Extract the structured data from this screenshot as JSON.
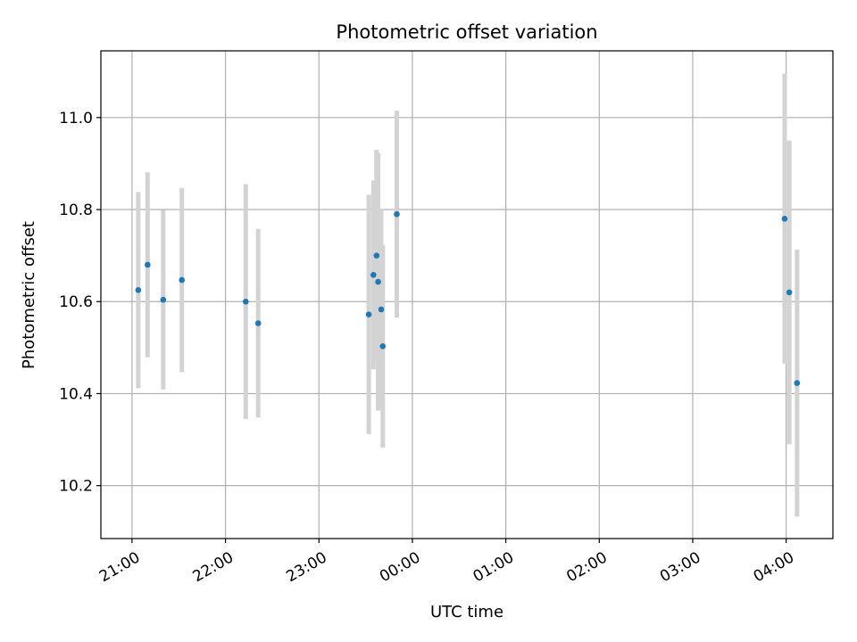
{
  "chart_data": {
    "type": "scatter",
    "title": "Photometric offset variation",
    "xlabel": "UTC time",
    "ylabel": "Photometric offset",
    "x_axis": "time (UTC), hours from 21:00 on the first night",
    "xlim": [
      "20:40",
      "04:30"
    ],
    "ylim": [
      10.085,
      11.145
    ],
    "xticks": [
      {
        "value": "21:00",
        "label": "21:00"
      },
      {
        "value": "22:00",
        "label": "22:00"
      },
      {
        "value": "23:00",
        "label": "23:00"
      },
      {
        "value": "00:00",
        "label": "00:00"
      },
      {
        "value": "01:00",
        "label": "01:00"
      },
      {
        "value": "02:00",
        "label": "02:00"
      },
      {
        "value": "03:00",
        "label": "03:00"
      },
      {
        "value": "04:00",
        "label": "04:00"
      }
    ],
    "yticks": [
      {
        "value": 10.2,
        "label": "10.2"
      },
      {
        "value": 10.4,
        "label": "10.4"
      },
      {
        "value": 10.6,
        "label": "10.6"
      },
      {
        "value": 10.8,
        "label": "10.8"
      },
      {
        "value": 11.0,
        "label": "11.0"
      }
    ],
    "grid": true,
    "marker_color": "#1f77b4",
    "errorbar_color": "#d3d3d3",
    "points": [
      {
        "x": "21:04",
        "y": 10.625,
        "err": 0.213
      },
      {
        "x": "21:10",
        "y": 10.68,
        "err": 0.201
      },
      {
        "x": "21:20",
        "y": 10.604,
        "err": 0.195
      },
      {
        "x": "21:32",
        "y": 10.647,
        "err": 0.2
      },
      {
        "x": "22:13",
        "y": 10.6,
        "err": 0.255
      },
      {
        "x": "22:21",
        "y": 10.553,
        "err": 0.205
      },
      {
        "x": "23:32",
        "y": 10.572,
        "err": 0.26
      },
      {
        "x": "23:35",
        "y": 10.658,
        "err": 0.205
      },
      {
        "x": "23:37",
        "y": 10.7,
        "err": 0.23
      },
      {
        "x": "23:38",
        "y": 10.643,
        "err": 0.28
      },
      {
        "x": "23:40",
        "y": 10.583,
        "err": 0.215
      },
      {
        "x": "23:41",
        "y": 10.503,
        "err": 0.22
      },
      {
        "x": "23:50",
        "y": 10.79,
        "err": 0.225
      },
      {
        "x": "03:59",
        "y": 10.78,
        "err": 0.315
      },
      {
        "x": "04:02",
        "y": 10.62,
        "err": 0.33
      },
      {
        "x": "04:07",
        "y": 10.423,
        "err": 0.29
      }
    ]
  }
}
